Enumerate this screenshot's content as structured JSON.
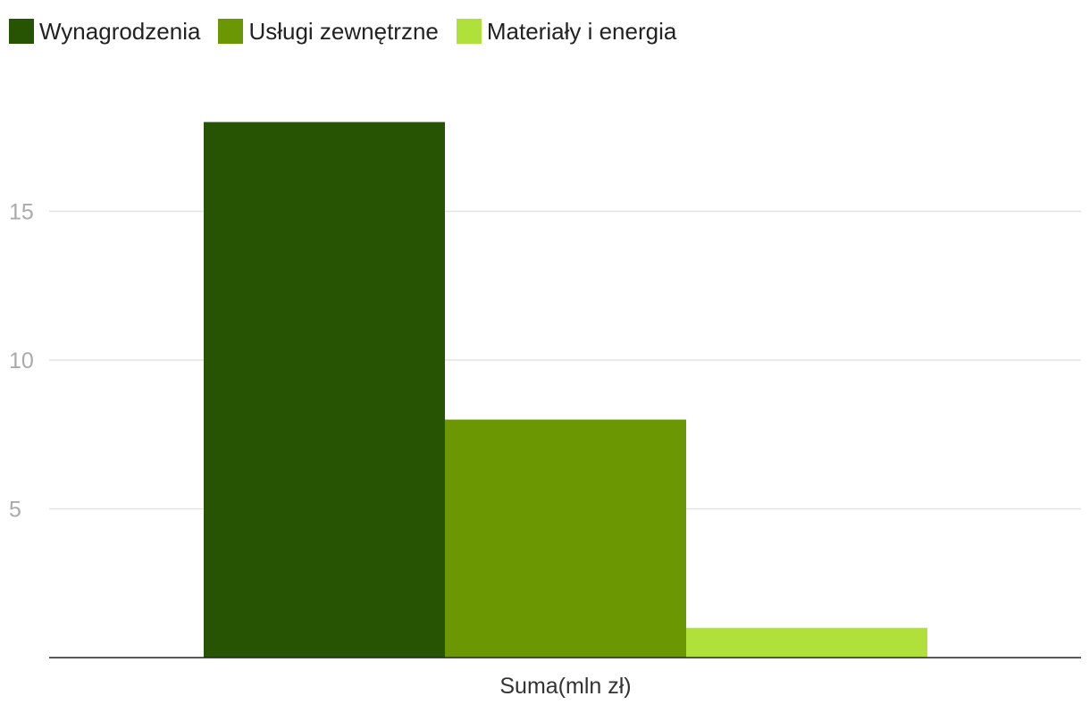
{
  "chart_data": {
    "type": "bar",
    "categories": [
      "Suma(mln zł)"
    ],
    "series": [
      {
        "name": "Wynagrodzenia",
        "color": "#265402",
        "values": [
          18
        ]
      },
      {
        "name": "Usługi zewnętrzne",
        "color": "#6a9702",
        "values": [
          8
        ]
      },
      {
        "name": "Materiały i energia",
        "color": "#b0e03a",
        "values": [
          1
        ]
      }
    ],
    "yticks": [
      5,
      10,
      15
    ],
    "ylim": [
      0,
      18.5
    ],
    "grid": true,
    "legend": "top-left"
  }
}
